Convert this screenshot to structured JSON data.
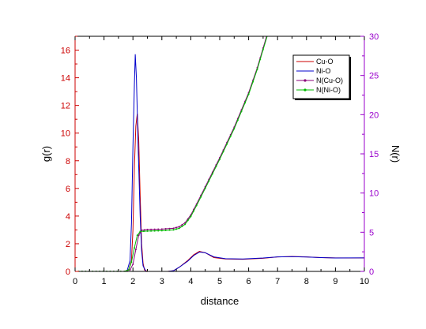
{
  "chart_data": {
    "type": "line",
    "xlabel": "distance",
    "ylabel_left": "g(r)",
    "ylabel_right": "N(r)",
    "xlim": [
      0,
      10
    ],
    "ylim_left": [
      0,
      17
    ],
    "ylim_right": [
      0,
      30
    ],
    "x_ticks": [
      "0",
      "1",
      "2",
      "3",
      "4",
      "5",
      "6",
      "7",
      "8",
      "9",
      "10"
    ],
    "y_left_ticks": [
      "0",
      "2",
      "4",
      "6",
      "8",
      "10",
      "12",
      "14",
      "16"
    ],
    "y_right_ticks": [
      "0",
      "5",
      "10",
      "15",
      "20",
      "25",
      "30"
    ],
    "grid": false,
    "legend_position": "top-right",
    "colors": {
      "left_axis": "#cc0000",
      "right_axis": "#9900cc",
      "bottom_axis": "#000000"
    },
    "series": [
      {
        "name": "Cu-O",
        "axis": "left",
        "color": "#cc0000",
        "points": [
          [
            0,
            0
          ],
          [
            1.7,
            0
          ],
          [
            1.85,
            0.1
          ],
          [
            1.95,
            0.8
          ],
          [
            2.0,
            3.0
          ],
          [
            2.05,
            7.5
          ],
          [
            2.1,
            10.5
          ],
          [
            2.15,
            11.4
          ],
          [
            2.2,
            9.5
          ],
          [
            2.25,
            5.5
          ],
          [
            2.3,
            2.0
          ],
          [
            2.35,
            0.6
          ],
          [
            2.4,
            0.1
          ],
          [
            2.5,
            0
          ],
          [
            3.2,
            0
          ],
          [
            3.4,
            0.05
          ],
          [
            3.6,
            0.3
          ],
          [
            3.9,
            0.8
          ],
          [
            4.1,
            1.2
          ],
          [
            4.3,
            1.45
          ],
          [
            4.5,
            1.35
          ],
          [
            4.8,
            1.0
          ],
          [
            5.2,
            0.9
          ],
          [
            5.8,
            0.88
          ],
          [
            6.5,
            0.95
          ],
          [
            7.0,
            1.05
          ],
          [
            7.5,
            1.08
          ],
          [
            8.0,
            1.05
          ],
          [
            8.5,
            1.0
          ],
          [
            9.0,
            0.98
          ],
          [
            9.5,
            0.97
          ],
          [
            10,
            0.98
          ]
        ]
      },
      {
        "name": "Ni-O",
        "axis": "left",
        "color": "#0000cc",
        "points": [
          [
            0,
            0
          ],
          [
            1.7,
            0
          ],
          [
            1.8,
            0.05
          ],
          [
            1.9,
            0.8
          ],
          [
            1.95,
            3.5
          ],
          [
            2.0,
            9.0
          ],
          [
            2.05,
            13.5
          ],
          [
            2.08,
            15.7
          ],
          [
            2.12,
            14.0
          ],
          [
            2.18,
            9.0
          ],
          [
            2.25,
            4.0
          ],
          [
            2.3,
            1.5
          ],
          [
            2.35,
            0.4
          ],
          [
            2.45,
            0
          ],
          [
            3.2,
            0
          ],
          [
            3.4,
            0.05
          ],
          [
            3.6,
            0.3
          ],
          [
            3.9,
            0.75
          ],
          [
            4.1,
            1.15
          ],
          [
            4.3,
            1.4
          ],
          [
            4.5,
            1.35
          ],
          [
            4.8,
            1.05
          ],
          [
            5.2,
            0.92
          ],
          [
            5.8,
            0.9
          ],
          [
            6.5,
            0.97
          ],
          [
            7.0,
            1.05
          ],
          [
            7.5,
            1.07
          ],
          [
            8.0,
            1.04
          ],
          [
            8.5,
            1.0
          ],
          [
            9.0,
            0.97
          ],
          [
            9.5,
            0.98
          ],
          [
            10,
            0.98
          ]
        ]
      },
      {
        "name": "N(Cu-O)",
        "axis": "right",
        "color": "#8a007a",
        "markers": true,
        "points": [
          [
            0,
            0
          ],
          [
            1.7,
            0
          ],
          [
            1.9,
            0.2
          ],
          [
            2.0,
            0.9
          ],
          [
            2.1,
            2.8
          ],
          [
            2.2,
            4.6
          ],
          [
            2.3,
            5.25
          ],
          [
            2.5,
            5.35
          ],
          [
            3.0,
            5.4
          ],
          [
            3.4,
            5.5
          ],
          [
            3.6,
            5.7
          ],
          [
            3.8,
            6.2
          ],
          [
            4.0,
            7.2
          ],
          [
            4.2,
            8.6
          ],
          [
            4.5,
            10.8
          ],
          [
            5.0,
            14.5
          ],
          [
            5.5,
            18.4
          ],
          [
            6.0,
            22.8
          ],
          [
            6.3,
            26.0
          ],
          [
            6.5,
            28.5
          ],
          [
            6.62,
            30
          ]
        ]
      },
      {
        "name": "N(Ni-O)",
        "axis": "right",
        "color": "#00bb00",
        "markers": true,
        "points": [
          [
            0,
            0
          ],
          [
            1.7,
            0
          ],
          [
            1.85,
            0.2
          ],
          [
            1.95,
            1.2
          ],
          [
            2.05,
            3.0
          ],
          [
            2.15,
            4.6
          ],
          [
            2.25,
            5.1
          ],
          [
            2.5,
            5.15
          ],
          [
            3.0,
            5.2
          ],
          [
            3.4,
            5.3
          ],
          [
            3.6,
            5.5
          ],
          [
            3.8,
            6.0
          ],
          [
            4.0,
            7.0
          ],
          [
            4.2,
            8.4
          ],
          [
            4.5,
            10.6
          ],
          [
            5.0,
            14.3
          ],
          [
            5.5,
            18.2
          ],
          [
            6.0,
            22.6
          ],
          [
            6.3,
            25.8
          ],
          [
            6.5,
            28.3
          ],
          [
            6.64,
            30
          ]
        ]
      }
    ]
  }
}
